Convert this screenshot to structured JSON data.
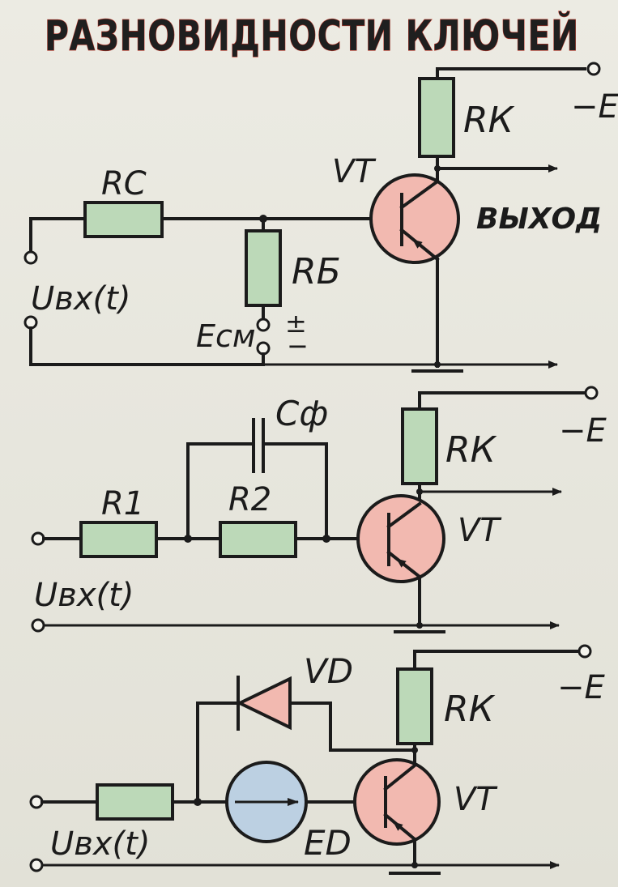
{
  "title": "РАЗНОВИДНОСТИ КЛЮЧЕЙ",
  "colors": {
    "background": "#e9e8df",
    "resistor_fill": "#bcd9b8",
    "transistor_fill": "#f2b9b0",
    "source_fill": "#bcd0e2",
    "ink": "#1b1b1b",
    "title_outline": "#c0392b"
  },
  "circuits": [
    {
      "labels": {
        "supply": "−E",
        "collector_resistor": "RК",
        "transistor": "VT",
        "output": "ВЫХОД",
        "source_resistor": "RС",
        "base_resistor": "RБ",
        "input": "Uвх(t)",
        "bias": "Eсм",
        "bias_plus": "+",
        "bias_sign": "±",
        "bias_minus": "−"
      }
    },
    {
      "labels": {
        "supply": "−E",
        "collector_resistor": "RК",
        "transistor": "VT",
        "capacitor": "Cф",
        "r1": "R1",
        "r2": "R2",
        "input": "Uвх(t)"
      }
    },
    {
      "labels": {
        "supply": "−E",
        "collector_resistor": "RК",
        "transistor": "VT",
        "diode": "VD",
        "source": "ED",
        "input": "Uвх(t)"
      }
    }
  ]
}
